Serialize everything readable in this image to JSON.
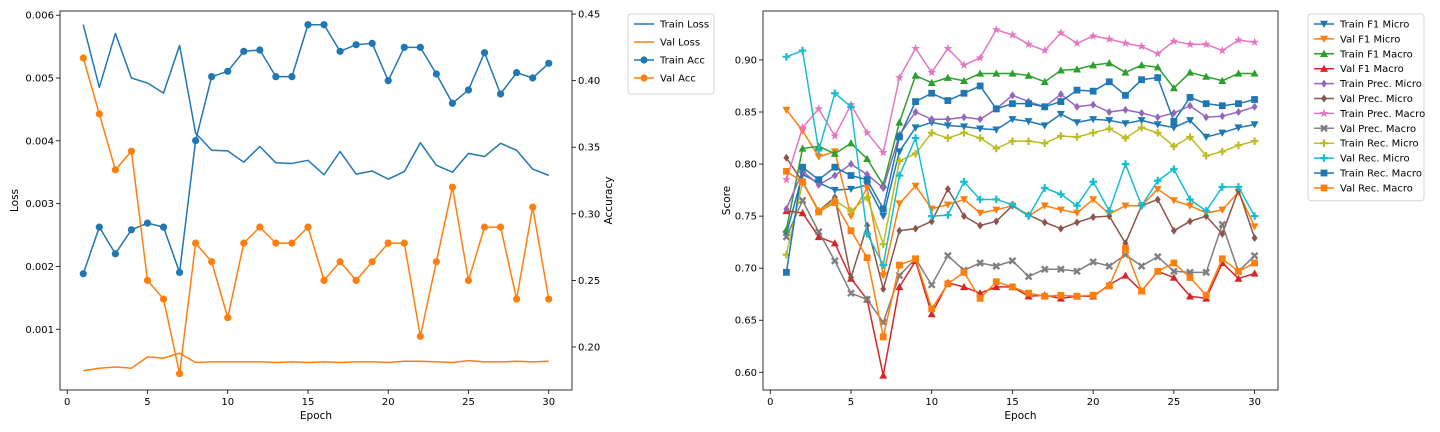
{
  "chart_data": [
    {
      "type": "line",
      "title": "",
      "xlabel": "Epoch",
      "ylabel": "Loss",
      "y2label": "Accuracy",
      "xlim": [
        -0.45,
        31.45
      ],
      "ylim": [
        3.3e-05,
        0.006067
      ],
      "y2lim": [
        0.1677,
        0.4523
      ],
      "xticks": [
        0,
        5,
        10,
        15,
        20,
        25,
        30
      ],
      "yticks": [
        0.001,
        0.002,
        0.003,
        0.004,
        0.005,
        0.006
      ],
      "ytick_labels": [
        "0.001",
        "0.002",
        "0.003",
        "0.004",
        "0.005",
        "0.006"
      ],
      "y2ticks": [
        0.2,
        0.25,
        0.3,
        0.35,
        0.4,
        0.45
      ],
      "y2tick_labels": [
        "0.20",
        "0.25",
        "0.30",
        "0.35",
        "0.40",
        "0.45"
      ],
      "grid": false,
      "legend": "outside-top-right",
      "x": [
        1,
        2,
        3,
        4,
        5,
        6,
        7,
        8,
        9,
        10,
        11,
        12,
        13,
        14,
        15,
        16,
        17,
        18,
        19,
        20,
        21,
        22,
        23,
        24,
        25,
        26,
        27,
        28,
        29,
        30
      ],
      "series": [
        {
          "name": "Train Loss",
          "axis": "left",
          "color": "#1f77b4",
          "marker": "none",
          "values": [
            0.00585,
            0.00485,
            0.00571,
            0.005,
            0.00492,
            0.00476,
            0.00552,
            0.00412,
            0.00385,
            0.00384,
            0.00366,
            0.00391,
            0.00365,
            0.00364,
            0.00369,
            0.00346,
            0.00383,
            0.00347,
            0.00352,
            0.00339,
            0.00351,
            0.00397,
            0.00361,
            0.0035,
            0.0038,
            0.00375,
            0.00396,
            0.00385,
            0.00355,
            0.00345
          ]
        },
        {
          "name": "Val Loss",
          "axis": "left",
          "color": "#ff7f0e",
          "marker": "none",
          "values": [
            0.00034,
            0.00038,
            0.0004,
            0.00038,
            0.00056,
            0.00054,
            0.00062,
            0.00047,
            0.00048,
            0.00048,
            0.00048,
            0.00048,
            0.00047,
            0.00048,
            0.00047,
            0.00048,
            0.00047,
            0.00048,
            0.00048,
            0.00047,
            0.00049,
            0.00049,
            0.00048,
            0.00047,
            0.0005,
            0.00048,
            0.00048,
            0.00049,
            0.00048,
            0.00049
          ]
        },
        {
          "name": "Train Acc",
          "axis": "right",
          "color": "#1f77b4",
          "marker": "circle",
          "values": [
            0.255,
            0.29,
            0.27,
            0.288,
            0.293,
            0.29,
            0.256,
            0.355,
            0.403,
            0.407,
            0.422,
            0.423,
            0.403,
            0.403,
            0.442,
            0.442,
            0.422,
            0.427,
            0.428,
            0.4,
            0.425,
            0.425,
            0.405,
            0.383,
            0.393,
            0.421,
            0.39,
            0.406,
            0.402,
            0.413
          ]
        },
        {
          "name": "Val Acc",
          "axis": "right",
          "color": "#ff7f0e",
          "marker": "circle",
          "values": [
            0.417,
            0.375,
            0.333,
            0.347,
            0.25,
            0.236,
            0.18,
            0.278,
            0.264,
            0.222,
            0.278,
            0.29,
            0.278,
            0.278,
            0.29,
            0.25,
            0.264,
            0.25,
            0.264,
            0.278,
            0.278,
            0.208,
            0.264,
            0.32,
            0.25,
            0.29,
            0.29,
            0.236,
            0.305,
            0.236
          ]
        }
      ]
    },
    {
      "type": "line",
      "title": "",
      "xlabel": "Epoch",
      "ylabel": "Score",
      "xlim": [
        -0.45,
        31.45
      ],
      "ylim": [
        0.583,
        0.947
      ],
      "xticks": [
        0,
        5,
        10,
        15,
        20,
        25,
        30
      ],
      "yticks": [
        0.6,
        0.65,
        0.7,
        0.75,
        0.8,
        0.85,
        0.9
      ],
      "ytick_labels": [
        "0.60",
        "0.65",
        "0.70",
        "0.75",
        "0.80",
        "0.85",
        "0.90"
      ],
      "grid": false,
      "legend": "outside-top-right",
      "x": [
        1,
        2,
        3,
        4,
        5,
        6,
        7,
        8,
        9,
        10,
        11,
        12,
        13,
        14,
        15,
        16,
        17,
        18,
        19,
        20,
        21,
        22,
        23,
        24,
        25,
        26,
        27,
        28,
        29,
        30
      ],
      "series": [
        {
          "name": "Train F1 Micro",
          "color": "#1f77b4",
          "marker": "triangle-down",
          "values": [
            0.733,
            0.79,
            0.782,
            0.775,
            0.776,
            0.78,
            0.75,
            0.812,
            0.835,
            0.84,
            0.837,
            0.836,
            0.834,
            0.833,
            0.843,
            0.841,
            0.837,
            0.848,
            0.84,
            0.843,
            0.842,
            0.839,
            0.842,
            0.838,
            0.835,
            0.842,
            0.826,
            0.83,
            0.835,
            0.838
          ]
        },
        {
          "name": "Val F1 Micro",
          "color": "#ff7f0e",
          "marker": "triangle-down",
          "values": [
            0.852,
            0.832,
            0.807,
            0.812,
            0.75,
            0.777,
            0.693,
            0.762,
            0.779,
            0.757,
            0.761,
            0.766,
            0.753,
            0.756,
            0.76,
            0.75,
            0.76,
            0.756,
            0.753,
            0.766,
            0.752,
            0.76,
            0.76,
            0.776,
            0.765,
            0.76,
            0.753,
            0.756,
            0.773,
            0.74
          ]
        },
        {
          "name": "Train F1 Macro",
          "color": "#2ca02c",
          "marker": "triangle-up",
          "values": [
            0.737,
            0.815,
            0.817,
            0.81,
            0.82,
            0.805,
            0.78,
            0.84,
            0.885,
            0.878,
            0.883,
            0.88,
            0.887,
            0.887,
            0.887,
            0.885,
            0.879,
            0.89,
            0.891,
            0.895,
            0.897,
            0.888,
            0.895,
            0.893,
            0.873,
            0.888,
            0.884,
            0.88,
            0.887,
            0.887
          ]
        },
        {
          "name": "Val F1 Macro",
          "color": "#d62728",
          "marker": "triangle-up",
          "values": [
            0.755,
            0.753,
            0.73,
            0.724,
            0.69,
            0.67,
            0.597,
            0.682,
            0.707,
            0.656,
            0.686,
            0.682,
            0.676,
            0.682,
            0.682,
            0.673,
            0.674,
            0.671,
            0.673,
            0.673,
            0.684,
            0.693,
            0.678,
            0.697,
            0.691,
            0.673,
            0.671,
            0.705,
            0.69,
            0.695
          ]
        },
        {
          "name": "Train Prec. Micro",
          "color": "#9467bd",
          "marker": "diamond",
          "values": [
            0.757,
            0.793,
            0.78,
            0.789,
            0.8,
            0.79,
            0.777,
            0.828,
            0.85,
            0.843,
            0.843,
            0.845,
            0.843,
            0.853,
            0.866,
            0.86,
            0.855,
            0.867,
            0.855,
            0.857,
            0.85,
            0.852,
            0.849,
            0.845,
            0.849,
            0.856,
            0.845,
            0.846,
            0.85,
            0.855
          ]
        },
        {
          "name": "Val Prec. Micro",
          "color": "#8c564b",
          "marker": "diamond",
          "values": [
            0.806,
            0.783,
            0.755,
            0.768,
            0.691,
            0.741,
            0.68,
            0.736,
            0.738,
            0.745,
            0.776,
            0.75,
            0.741,
            0.745,
            0.76,
            0.751,
            0.744,
            0.738,
            0.744,
            0.749,
            0.75,
            0.724,
            0.76,
            0.766,
            0.736,
            0.745,
            0.75,
            0.733,
            0.775,
            0.729
          ]
        },
        {
          "name": "Train Prec. Macro",
          "color": "#e377c2",
          "marker": "star",
          "values": [
            0.785,
            0.835,
            0.853,
            0.827,
            0.857,
            0.83,
            0.811,
            0.883,
            0.911,
            0.888,
            0.911,
            0.895,
            0.902,
            0.929,
            0.924,
            0.915,
            0.909,
            0.926,
            0.916,
            0.923,
            0.92,
            0.916,
            0.913,
            0.906,
            0.918,
            0.915,
            0.915,
            0.909,
            0.919,
            0.917
          ]
        },
        {
          "name": "Val Prec. Macro",
          "color": "#7f7f7f",
          "marker": "x",
          "values": [
            0.73,
            0.765,
            0.735,
            0.707,
            0.676,
            0.67,
            0.648,
            0.693,
            0.709,
            0.684,
            0.712,
            0.698,
            0.705,
            0.702,
            0.707,
            0.692,
            0.699,
            0.699,
            0.697,
            0.706,
            0.702,
            0.713,
            0.702,
            0.711,
            0.697,
            0.696,
            0.696,
            0.742,
            0.697,
            0.712
          ]
        },
        {
          "name": "Train Rec. Micro",
          "color": "#bcbd22",
          "marker": "plus",
          "values": [
            0.713,
            0.782,
            0.755,
            0.765,
            0.755,
            0.768,
            0.723,
            0.803,
            0.81,
            0.83,
            0.825,
            0.83,
            0.825,
            0.815,
            0.822,
            0.822,
            0.82,
            0.827,
            0.826,
            0.83,
            0.834,
            0.825,
            0.835,
            0.83,
            0.817,
            0.826,
            0.808,
            0.812,
            0.818,
            0.822
          ]
        },
        {
          "name": "Val Rec. Micro",
          "color": "#17becf",
          "marker": "plus",
          "values": [
            0.903,
            0.909,
            0.813,
            0.868,
            0.855,
            0.733,
            0.703,
            0.789,
            0.825,
            0.75,
            0.751,
            0.783,
            0.766,
            0.766,
            0.761,
            0.75,
            0.777,
            0.771,
            0.76,
            0.783,
            0.755,
            0.8,
            0.76,
            0.784,
            0.795,
            0.766,
            0.755,
            0.778,
            0.778,
            0.75
          ]
        },
        {
          "name": "Train Rec. Macro",
          "color": "#1f77b4",
          "marker": "square",
          "values": [
            0.696,
            0.797,
            0.785,
            0.797,
            0.789,
            0.785,
            0.757,
            0.826,
            0.86,
            0.868,
            0.861,
            0.868,
            0.875,
            0.853,
            0.858,
            0.858,
            0.855,
            0.86,
            0.871,
            0.87,
            0.879,
            0.866,
            0.881,
            0.883,
            0.841,
            0.864,
            0.858,
            0.856,
            0.858,
            0.862
          ]
        },
        {
          "name": "Val Rec. Macro",
          "color": "#ff7f0e",
          "marker": "square",
          "values": [
            0.793,
            0.783,
            0.754,
            0.763,
            0.736,
            0.71,
            0.634,
            0.703,
            0.709,
            0.661,
            0.685,
            0.696,
            0.671,
            0.687,
            0.682,
            0.676,
            0.673,
            0.674,
            0.673,
            0.674,
            0.683,
            0.719,
            0.678,
            0.697,
            0.705,
            0.691,
            0.674,
            0.709,
            0.697,
            0.705
          ]
        }
      ]
    }
  ]
}
